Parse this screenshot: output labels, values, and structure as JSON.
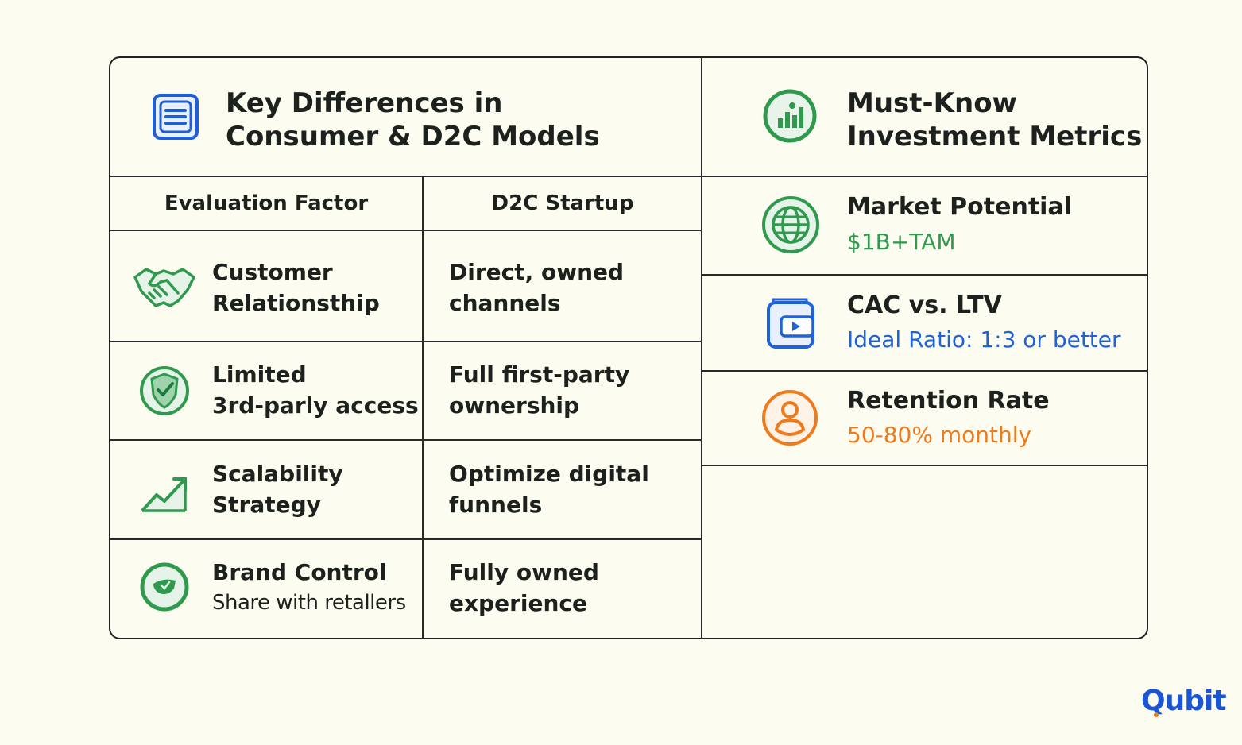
{
  "left_panel": {
    "title_line1": "Key Differences in",
    "title_line2": "Consumer & D2C Models",
    "title_icon": "document-list-icon",
    "columns": [
      "Evaluation Factor",
      "D2C Startup"
    ],
    "rows": [
      {
        "icon": "handshake-icon",
        "factor_line1": "Customer",
        "factor_line2": "Relationsthip",
        "d2c_line1": "Direct, owned",
        "d2c_line2": "channels"
      },
      {
        "icon": "shield-check-icon",
        "factor_line1": "Limited",
        "factor_line2": "3rd-parly access",
        "d2c_line1": "Full first-party",
        "d2c_line2": "ownership"
      },
      {
        "icon": "growth-chart-icon",
        "factor_line1": "Scalability",
        "factor_line2": "Strategy",
        "d2c_line1": "Optimize digital",
        "d2c_line2": "funnels"
      },
      {
        "icon": "brand-badge-icon",
        "factor_line1": "Brand Control",
        "factor_line2": "Share with retallers",
        "d2c_line1": "Fully owned",
        "d2c_line2": "experience"
      }
    ]
  },
  "right_panel": {
    "title_line1": "Must-Know",
    "title_line2": "Investment Metrics",
    "title_icon": "bar-chart-circle-icon",
    "metrics": [
      {
        "icon": "globe-icon",
        "label": "Market Potential",
        "value": "$1B+TAM",
        "color": "#2f9a4e"
      },
      {
        "icon": "wallet-video-icon",
        "label": "CAC vs. LTV",
        "value": "Ideal Ratio: 1:3 or better",
        "color": "#1f63d8"
      },
      {
        "icon": "user-circle-icon",
        "label": "Retention Rate",
        "value": "50-80% monthly",
        "color": "#ee7a1c"
      }
    ]
  },
  "brand": {
    "logo": "Qubit"
  }
}
